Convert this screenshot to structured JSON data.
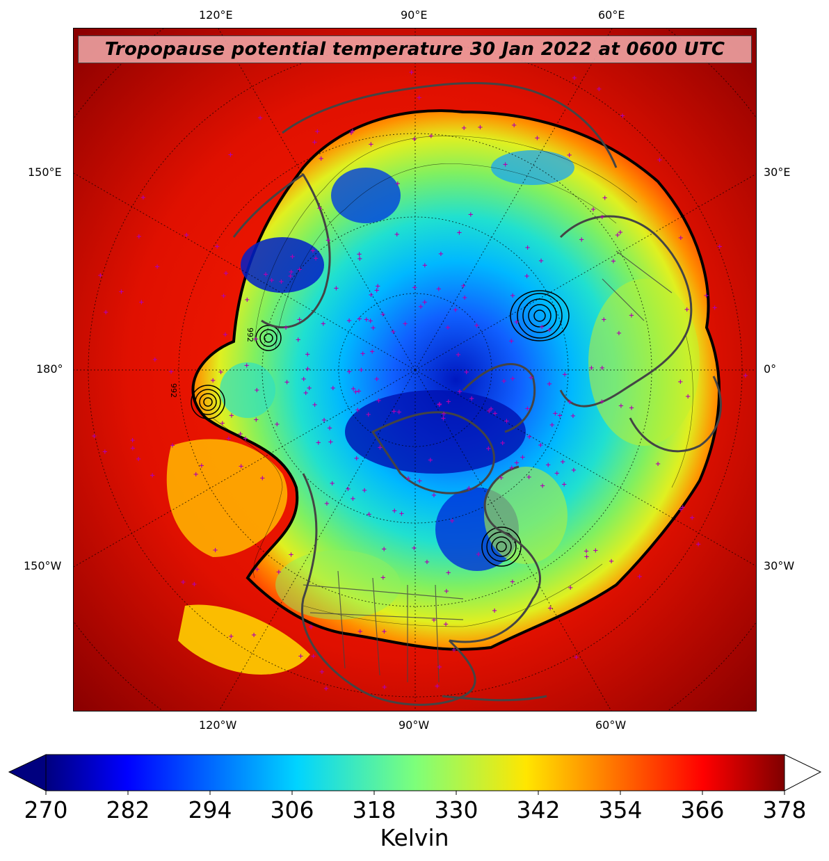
{
  "title": "Tropopause potential temperature 30 Jan 2022 at 0600 UTC",
  "axis_labels": {
    "top": [
      "120°E",
      "90°E",
      "60°E"
    ],
    "bottom": [
      "120°W",
      "90°W",
      "60°W"
    ],
    "left": [
      "150°E",
      "180°",
      "150°W"
    ],
    "right": [
      "30°E",
      "0°",
      "30°W"
    ]
  },
  "colorbar": {
    "unit": "Kelvin",
    "ticks": [
      "270",
      "282",
      "294",
      "306",
      "318",
      "330",
      "342",
      "354",
      "366",
      "378"
    ],
    "min": 270,
    "max": 378,
    "colormap": "jet",
    "extend": "both"
  },
  "colors": {
    "coastline": "#444444",
    "stations": "#b000b0",
    "contours": "#000000"
  }
}
